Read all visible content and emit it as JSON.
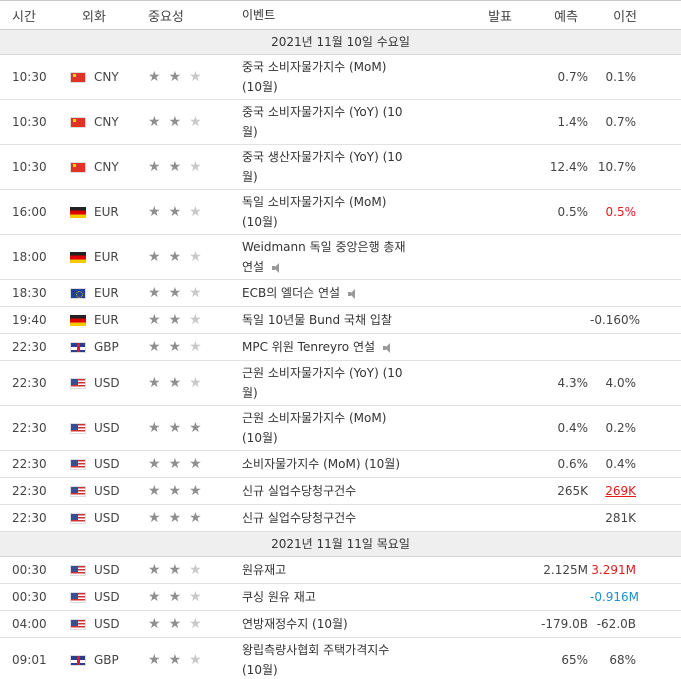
{
  "headers": {
    "time": "시간",
    "currency": "외화",
    "importance": "중요성",
    "event": "이벤트",
    "actual": "발표",
    "forecast": "예측",
    "previous": "이전"
  },
  "dates": [
    "2021년 11월 10일 수요일",
    "2021년 11월 11일 목요일"
  ],
  "rows_day1": [
    {
      "time": "10:30",
      "cur": "CNY",
      "flag": "cny",
      "stars": 2,
      "ev1": "중국 소비자물가지수 (MoM)",
      "ev2": "(10월)",
      "act": "",
      "fc": "0.7%",
      "prev": "0.1%",
      "prev_color": ""
    },
    {
      "time": "10:30",
      "cur": "CNY",
      "flag": "cny",
      "stars": 2,
      "ev1": "중국 소비자물가지수 (YoY) (10",
      "ev2": "월)",
      "act": "",
      "fc": "1.4%",
      "prev": "0.7%",
      "prev_color": ""
    },
    {
      "time": "10:30",
      "cur": "CNY",
      "flag": "cny",
      "stars": 2,
      "ev1": "중국 생산자물가지수 (YoY) (10",
      "ev2": "월)",
      "act": "",
      "fc": "12.4%",
      "prev": "10.7%",
      "prev_color": ""
    },
    {
      "time": "16:00",
      "cur": "EUR",
      "flag": "eur-de",
      "stars": 2,
      "ev1": "독일 소비자물가지수 (MoM)",
      "ev2": "(10월)",
      "act": "",
      "fc": "0.5%",
      "prev": "0.5%",
      "prev_color": "red"
    },
    {
      "time": "18:00",
      "cur": "EUR",
      "flag": "eur-de",
      "stars": 2,
      "ev1": "Weidmann 독일 중앙은행 총재",
      "ev2": "연설",
      "speech": true,
      "act": "",
      "fc": "",
      "prev": "",
      "prev_color": ""
    },
    {
      "time": "18:30",
      "cur": "EUR",
      "flag": "eur",
      "stars": 2,
      "ev1": "ECB의 엘더슨 연설",
      "speech": true,
      "act": "",
      "fc": "",
      "prev": "",
      "prev_color": ""
    },
    {
      "time": "19:40",
      "cur": "EUR",
      "flag": "eur-de",
      "stars": 2,
      "ev1": "독일 10년물 Bund 국채 입찰",
      "act": "",
      "fc": "",
      "prev": "-0.160%",
      "prev_color": ""
    },
    {
      "time": "22:30",
      "cur": "GBP",
      "flag": "gbp",
      "stars": 2,
      "ev1": "MPC 위원 Tenreyro 연설",
      "speech": true,
      "act": "",
      "fc": "",
      "prev": "",
      "prev_color": ""
    },
    {
      "time": "22:30",
      "cur": "USD",
      "flag": "usd",
      "stars": 2,
      "ev1": "근원 소비자물가지수 (YoY) (10",
      "ev2": "월)",
      "act": "",
      "fc": "4.3%",
      "prev": "4.0%",
      "prev_color": ""
    },
    {
      "time": "22:30",
      "cur": "USD",
      "flag": "usd",
      "stars": 3,
      "ev1": "근원 소비자물가지수 (MoM)",
      "ev2": "(10월)",
      "act": "",
      "fc": "0.4%",
      "prev": "0.2%",
      "prev_color": ""
    },
    {
      "time": "22:30",
      "cur": "USD",
      "flag": "usd",
      "stars": 3,
      "ev1": "소비자물가지수 (MoM) (10월)",
      "act": "",
      "fc": "0.6%",
      "prev": "0.4%",
      "prev_color": ""
    },
    {
      "time": "22:30",
      "cur": "USD",
      "flag": "usd",
      "stars": 3,
      "ev1": "신규 실업수당청구건수",
      "act": "",
      "fc": "265K",
      "prev": "269K",
      "prev_color": "red-under"
    },
    {
      "time": "22:30",
      "cur": "USD",
      "flag": "usd",
      "stars": 3,
      "ev1": "신규 실업수당청구건수",
      "act": "",
      "fc": "",
      "prev": "281K",
      "prev_color": ""
    }
  ],
  "rows_day2": [
    {
      "time": "00:30",
      "cur": "USD",
      "flag": "usd",
      "stars": 2,
      "ev1": "원유재고",
      "act": "",
      "fc": "2.125M",
      "prev": "3.291M",
      "prev_color": "red"
    },
    {
      "time": "00:30",
      "cur": "USD",
      "flag": "usd",
      "stars": 2,
      "ev1": "쿠싱 원유 재고",
      "act": "",
      "fc": "",
      "prev": "-0.916M",
      "prev_color": "blue"
    },
    {
      "time": "04:00",
      "cur": "USD",
      "flag": "usd",
      "stars": 2,
      "ev1": "연방재정수지 (10월)",
      "act": "",
      "fc": "-179.0B",
      "prev": "-62.0B",
      "prev_color": ""
    },
    {
      "time": "09:01",
      "cur": "GBP",
      "flag": "gbp",
      "stars": 2,
      "ev1": "왕립측량사협회 주택가격지수",
      "ev2": "(10월)",
      "act": "",
      "fc": "65%",
      "prev": "68%",
      "prev_color": ""
    }
  ]
}
